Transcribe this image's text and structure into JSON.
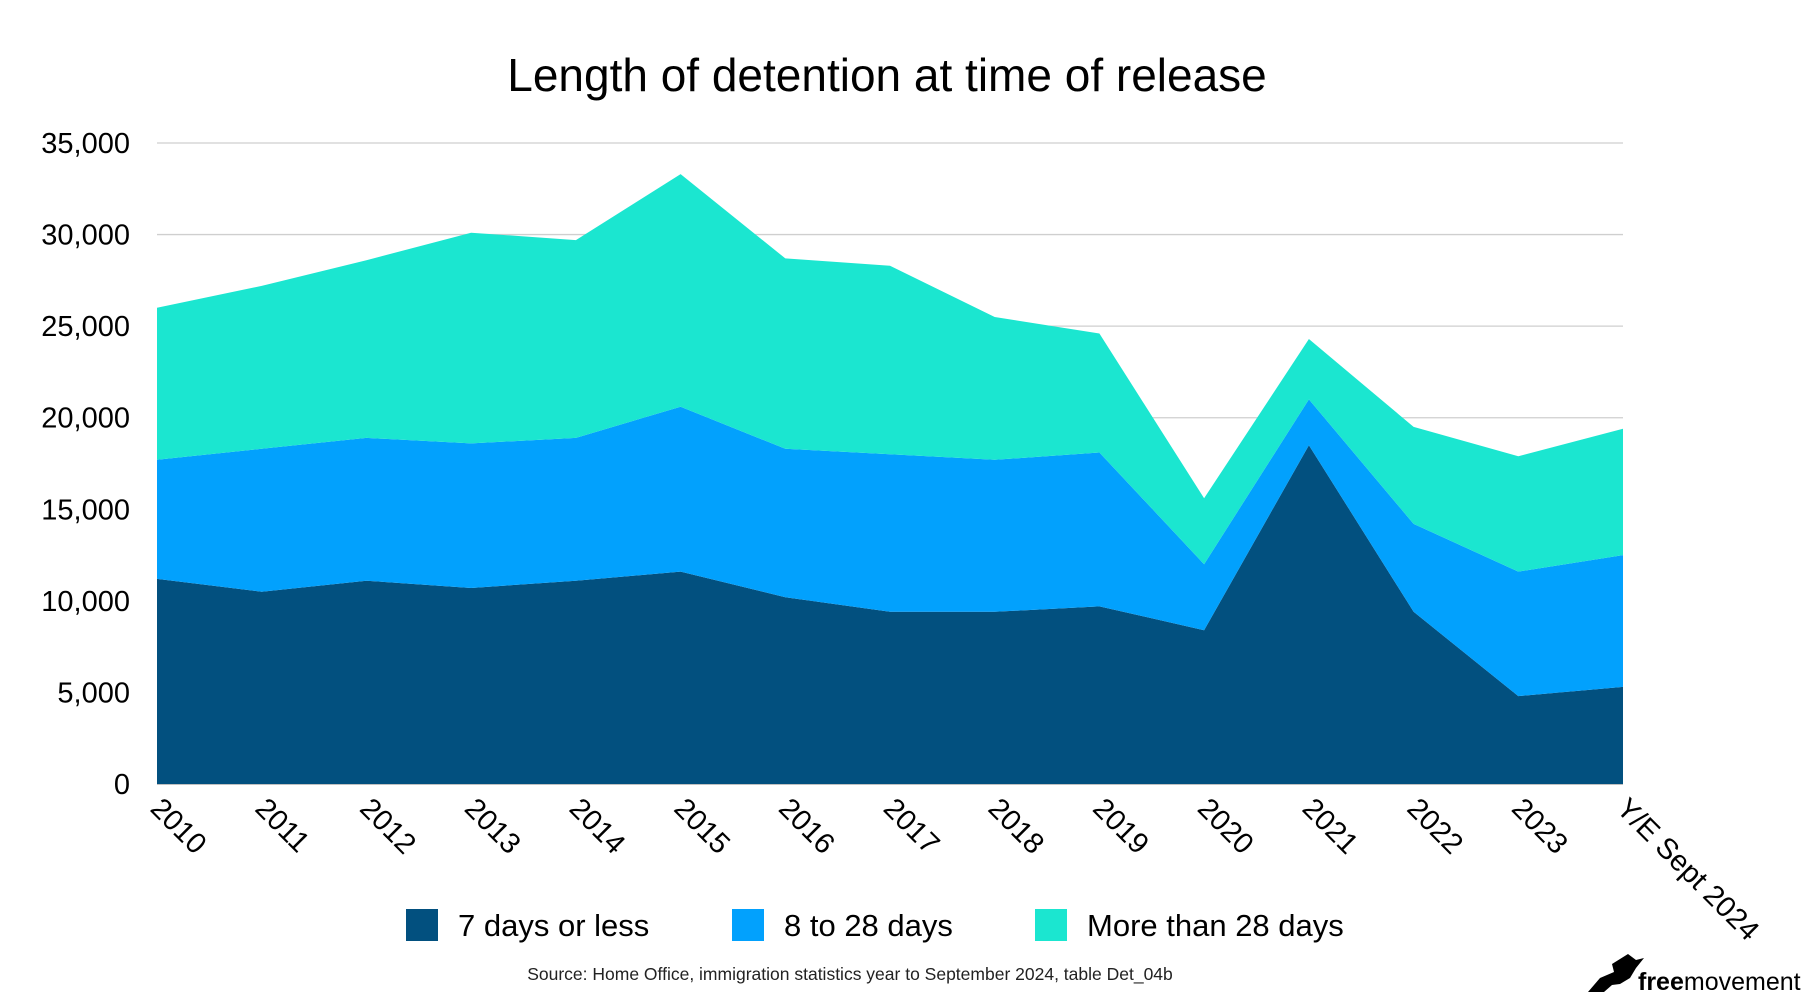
{
  "chart_data": {
    "type": "area",
    "stacked": true,
    "title": "Length of detention at time of release",
    "categories": [
      "2010",
      "2011",
      "2012",
      "2013",
      "2014",
      "2015",
      "2016",
      "2017",
      "2018",
      "2019",
      "2020",
      "2021",
      "2022",
      "2023",
      "Y/E Sept 2024"
    ],
    "series": [
      {
        "name": "7 days or less",
        "color": "#02507f",
        "values": [
          11200,
          10500,
          11100,
          10700,
          11100,
          11600,
          10200,
          9400,
          9400,
          9700,
          8400,
          18500,
          9400,
          4800,
          5300
        ]
      },
      {
        "name": "8 to 28 days",
        "color": "#02a1fd",
        "values": [
          6500,
          7800,
          7800,
          7900,
          7800,
          9000,
          8100,
          8600,
          8300,
          8400,
          3600,
          2500,
          4800,
          6800,
          7200
        ]
      },
      {
        "name": "More than 28 days",
        "color": "#1be6d0",
        "values": [
          8300,
          8900,
          9700,
          11500,
          10800,
          12700,
          10400,
          10300,
          7800,
          6500,
          3600,
          3300,
          5300,
          6300,
          6900
        ]
      }
    ],
    "ylim": [
      0,
      35000
    ],
    "yticks": [
      0,
      5000,
      10000,
      15000,
      20000,
      25000,
      30000,
      35000
    ],
    "ytick_labels": [
      "0",
      "5,000",
      "10,000",
      "15,000",
      "20,000",
      "25,000",
      "30,000",
      "35,000"
    ],
    "grid": true,
    "legend_position": "bottom"
  },
  "source_note": "Source: Home Office, immigration statistics year to September 2024, table Det_04b",
  "brand": {
    "part1": "free",
    "part2": "movement",
    "icon": "bird-icon"
  }
}
